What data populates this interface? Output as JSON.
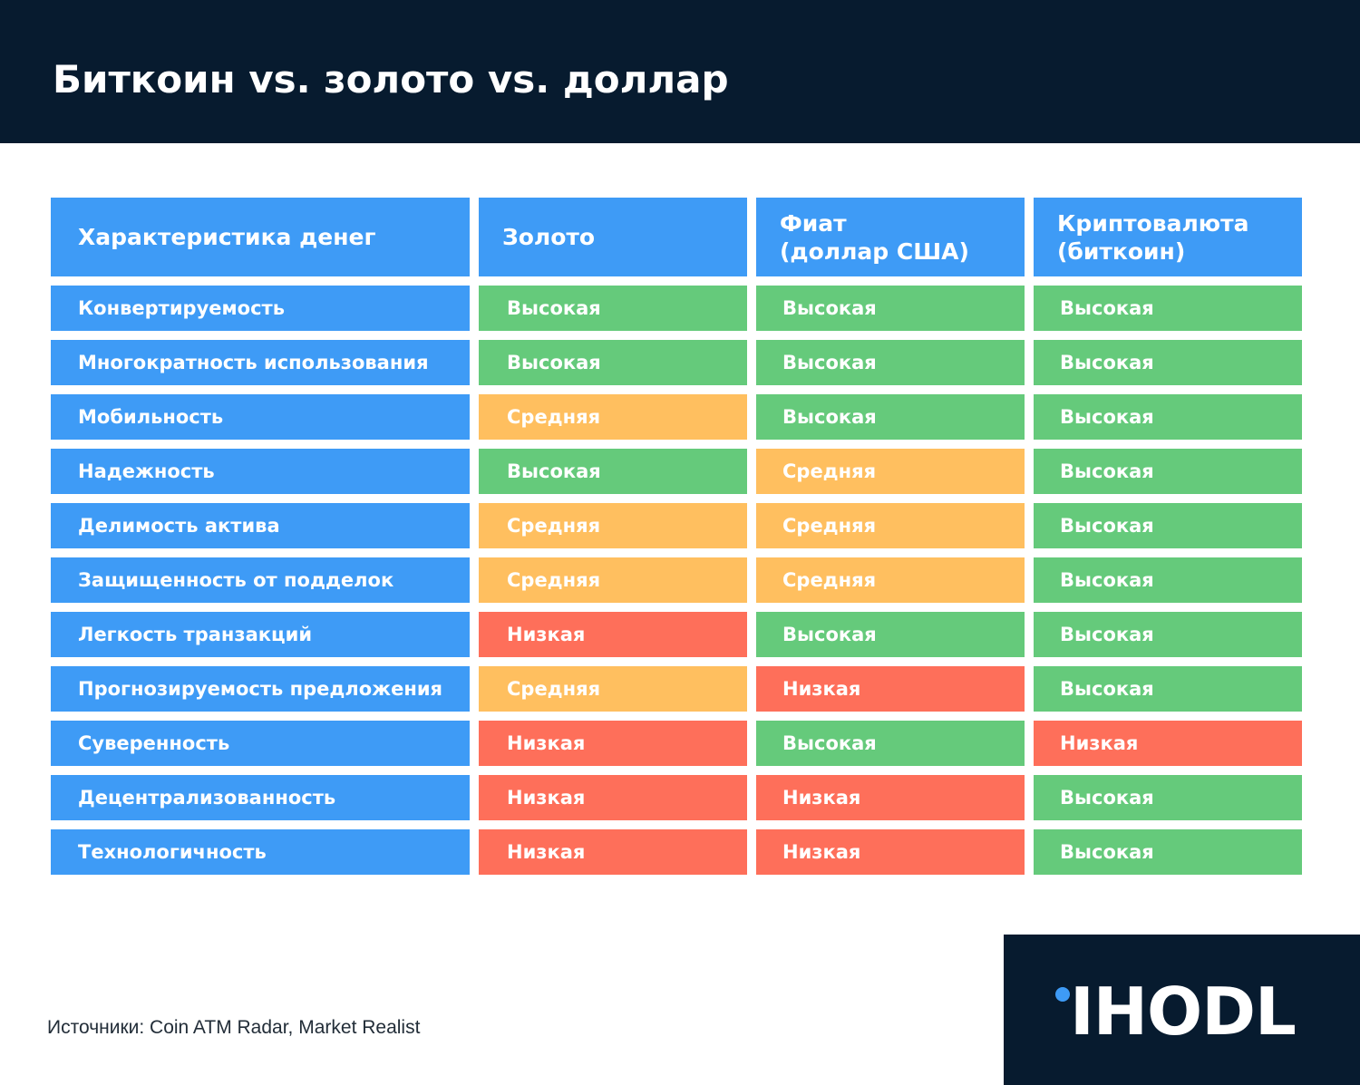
{
  "header": {
    "title": "Биткоин vs. золото vs. доллар"
  },
  "table": {
    "columns": [
      "Характеристика денег",
      "Золото",
      "Фиат\n(доллар США)",
      "Криптовалюта\n(биткоин)"
    ],
    "rows": [
      {
        "feature": "Конвертируемость",
        "values": [
          "Высокая",
          "Высокая",
          "Высокая"
        ]
      },
      {
        "feature": "Многократность использования",
        "values": [
          "Высокая",
          "Высокая",
          "Высокая"
        ]
      },
      {
        "feature": "Мобильность",
        "values": [
          "Средняя",
          "Высокая",
          "Высокая"
        ]
      },
      {
        "feature": "Надежность",
        "values": [
          "Высокая",
          "Средняя",
          "Высокая"
        ]
      },
      {
        "feature": "Делимость актива",
        "values": [
          "Средняя",
          "Средняя",
          "Высокая"
        ]
      },
      {
        "feature": "Защищенность от подделок",
        "values": [
          "Средняя",
          "Средняя",
          "Высокая"
        ]
      },
      {
        "feature": "Легкость транзакций",
        "values": [
          "Низкая",
          "Высокая",
          "Высокая"
        ]
      },
      {
        "feature": "Прогнозируемость предложения",
        "values": [
          "Средняя",
          "Низкая",
          "Высокая"
        ]
      },
      {
        "feature": "Суверенность",
        "values": [
          "Низкая",
          "Высокая",
          "Низкая"
        ]
      },
      {
        "feature": "Децентрализованность",
        "values": [
          "Низкая",
          "Низкая",
          "Высокая"
        ]
      },
      {
        "feature": "Технологичность",
        "values": [
          "Низкая",
          "Низкая",
          "Высокая"
        ]
      }
    ]
  },
  "colors": {
    "header_bg": "#071b2f",
    "feature_bg": "#3e9bf6",
    "Высокая": "#65ca7b",
    "Средняя": "#ffbf5f",
    "Низкая": "#fe6f5a"
  },
  "footnote": "Источники: Coin ATM Radar, Market Realist",
  "logo": {
    "text": "IHODL",
    "icon": "logo-dot-icon"
  }
}
